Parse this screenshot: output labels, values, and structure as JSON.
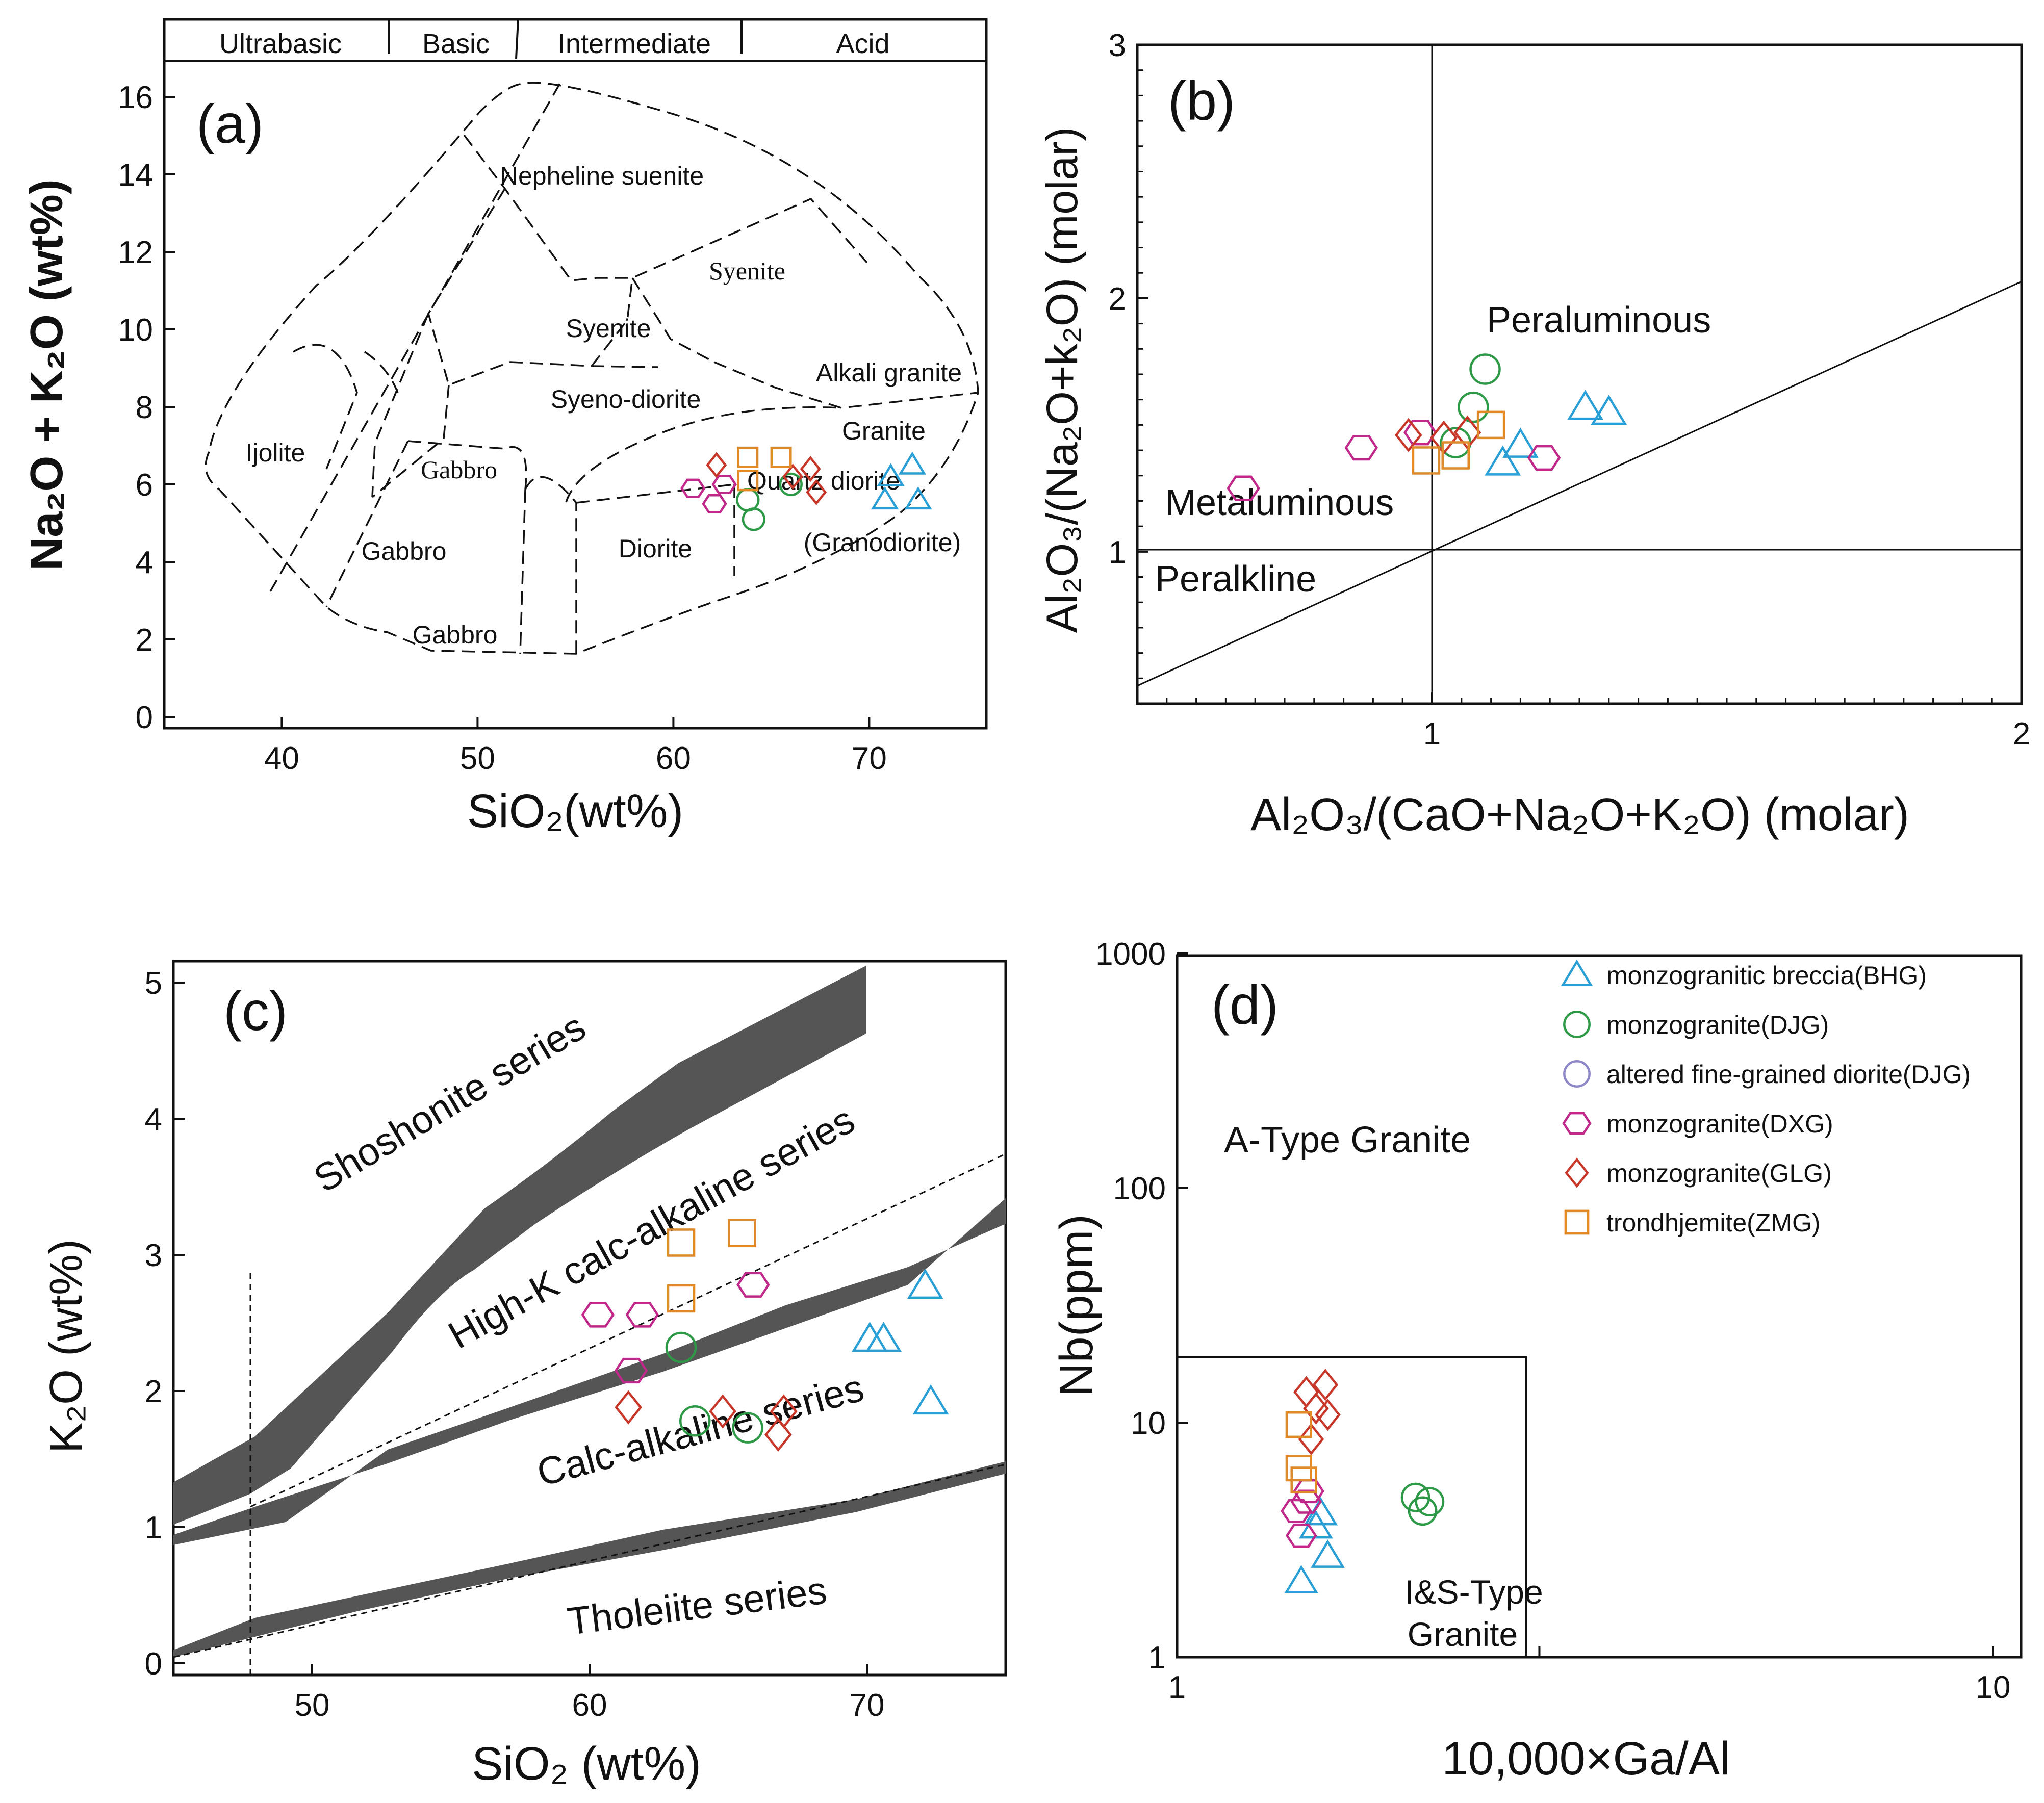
{
  "colors": {
    "BHG": "#2a9fd6",
    "DJG": "#2e9a48",
    "DJG_altered": "#8e88c8",
    "DXG": "#c0288a",
    "GLG": "#c8382a",
    "ZMG": "#e08a2a",
    "band": "#555555",
    "line": "#111111"
  },
  "legend": [
    {
      "label": "monzogranitic breccia(BHG)",
      "marker": "triangle",
      "key": "BHG"
    },
    {
      "label": "monzogranite(DJG)",
      "marker": "circle",
      "key": "DJG"
    },
    {
      "label": "altered fine-grained diorite(DJG)",
      "marker": "circle",
      "key": "DJG_altered"
    },
    {
      "label": "monzogranite(DXG)",
      "marker": "hexagon",
      "key": "DXG"
    },
    {
      "label": "monzogranite(GLG)",
      "marker": "diamond",
      "key": "GLG"
    },
    {
      "label": "trondhjemite(ZMG)",
      "marker": "square",
      "key": "ZMG"
    }
  ],
  "chart_data": [
    {
      "panel": "(a)",
      "type": "scatter",
      "xlabel": "SiO₂(wt%)",
      "ylabel": "Na₂O + K₂O (wt%)",
      "xlim": [
        34,
        76
      ],
      "ylim": [
        0,
        17.7
      ],
      "xticks": [
        40,
        50,
        60,
        70
      ],
      "yticks": [
        0,
        2,
        4,
        6,
        8,
        10,
        12,
        14,
        16
      ],
      "top_bands": [
        "Ultrabasic",
        "Basic",
        "Intermediate",
        "Acid"
      ],
      "fields": [
        "Nepheline suenite",
        "Syenite",
        "Syenite",
        "Alkali granite",
        "Syeno-diorite",
        "Granite",
        "Ijolite",
        "Gabbro",
        "Quartz diorite",
        "(Granodiorite)",
        "Gabbro",
        "Diorite",
        "Gabbro"
      ],
      "series": [
        {
          "key": "BHG",
          "marker": "triangle",
          "x": [
            70.8,
            71.1,
            72.2,
            72.5
          ],
          "y": [
            5.6,
            6.2,
            6.5,
            5.6
          ]
        },
        {
          "key": "DJG",
          "marker": "circle",
          "x": [
            63.8,
            64.1,
            66.0
          ],
          "y": [
            5.6,
            5.1,
            6.0
          ]
        },
        {
          "key": "DXG",
          "marker": "hexagon",
          "x": [
            61.0,
            62.1,
            62.6
          ],
          "y": [
            5.9,
            5.5,
            6.0
          ]
        },
        {
          "key": "GLG",
          "marker": "diamond",
          "x": [
            62.2,
            66.1,
            67.0,
            67.3
          ],
          "y": [
            6.5,
            6.2,
            6.4,
            5.8
          ]
        },
        {
          "key": "ZMG",
          "marker": "square",
          "x": [
            63.8,
            63.8,
            65.5
          ],
          "y": [
            6.1,
            6.7,
            6.7
          ]
        }
      ]
    },
    {
      "panel": "(b)",
      "type": "scatter",
      "xlabel": "Al₂O₃/(CaO+Na₂O+K₂O) (molar)",
      "ylabel": "Al₂O₃/(Na₂O+k₂O) (molar)",
      "xlim": [
        0.5,
        2.0
      ],
      "ylim": [
        0.4,
        3.0
      ],
      "xticks": [
        1,
        2
      ],
      "yticks": [
        1,
        2,
        3
      ],
      "fields": [
        "Peraluminous",
        "Metaluminous",
        "Peralkline"
      ],
      "series": [
        {
          "key": "BHG",
          "marker": "triangle",
          "x": [
            1.12,
            1.15,
            1.26,
            1.3
          ],
          "y": [
            1.35,
            1.42,
            1.57,
            1.55
          ]
        },
        {
          "key": "DJG",
          "marker": "circle",
          "x": [
            1.04,
            1.07,
            1.09
          ],
          "y": [
            1.43,
            1.57,
            1.72
          ]
        },
        {
          "key": "DXG",
          "marker": "hexagon",
          "x": [
            0.68,
            0.88,
            0.98,
            1.19
          ],
          "y": [
            1.25,
            1.41,
            1.47,
            1.37
          ]
        },
        {
          "key": "GLG",
          "marker": "diamond",
          "x": [
            0.96,
            1.02,
            1.06
          ],
          "y": [
            1.46,
            1.45,
            1.47
          ]
        },
        {
          "key": "ZMG",
          "marker": "square",
          "x": [
            0.99,
            1.04,
            1.1
          ],
          "y": [
            1.36,
            1.38,
            1.5
          ]
        }
      ]
    },
    {
      "panel": "(c)",
      "type": "scatter",
      "xlabel": "SiO₂ (wt%)",
      "ylabel": "K₂O (wt%)",
      "xlim": [
        45,
        75
      ],
      "ylim": [
        0,
        5.2
      ],
      "xticks": [
        50,
        60,
        70
      ],
      "yticks": [
        0,
        1,
        2,
        3,
        4,
        5
      ],
      "fields": [
        "Shoshonite series",
        "High-K calc-alkaline series",
        "Calc-alkaline series",
        "Tholeiite series"
      ],
      "series": [
        {
          "key": "BHG",
          "marker": "triangle",
          "x": [
            70.1,
            70.6,
            72.1,
            72.3
          ],
          "y": [
            2.38,
            2.38,
            2.77,
            1.92
          ]
        },
        {
          "key": "DJG",
          "marker": "circle",
          "x": [
            63.3,
            63.8,
            65.7
          ],
          "y": [
            2.32,
            1.78,
            1.73
          ]
        },
        {
          "key": "DXG",
          "marker": "hexagon",
          "x": [
            60.3,
            61.5,
            61.9,
            65.9
          ],
          "y": [
            2.56,
            2.15,
            2.56,
            2.78
          ]
        },
        {
          "key": "GLG",
          "marker": "diamond",
          "x": [
            61.4,
            64.8,
            66.8,
            67.0
          ],
          "y": [
            1.88,
            1.85,
            1.68,
            1.85
          ]
        },
        {
          "key": "ZMG",
          "marker": "square",
          "x": [
            63.3,
            63.3,
            65.5
          ],
          "y": [
            3.09,
            2.68,
            3.16
          ]
        }
      ]
    },
    {
      "panel": "(d)",
      "type": "scatter",
      "xlabel": "10,000×Ga/Al",
      "ylabel": "Nb(ppm)",
      "xscale": "log",
      "yscale": "log",
      "xlim": [
        1,
        10
      ],
      "ylim": [
        1,
        1000
      ],
      "xticks": [
        1,
        10
      ],
      "yticks": [
        1,
        10,
        100,
        1000
      ],
      "fields": [
        "A-Type Granite",
        "I&S-Type",
        "Granite"
      ],
      "series": [
        {
          "key": "BHG",
          "marker": "triangle",
          "x": [
            1.42,
            1.48,
            1.5,
            1.53
          ],
          "y": [
            2.1,
            3.6,
            4.1,
            2.7
          ]
        },
        {
          "key": "DJG",
          "marker": "circle",
          "x": [
            1.96,
            2.0,
            2.04
          ],
          "y": [
            4.8,
            4.2,
            4.6
          ]
        },
        {
          "key": "DXG",
          "marker": "hexagon",
          "x": [
            1.4,
            1.42,
            1.44,
            1.45
          ],
          "y": [
            4.2,
            3.3,
            4.6,
            5.1
          ]
        },
        {
          "key": "GLG",
          "marker": "diamond",
          "x": [
            1.44,
            1.46,
            1.48,
            1.52,
            1.53
          ],
          "y": [
            13.5,
            8.5,
            11.5,
            14.5,
            10.8
          ]
        },
        {
          "key": "ZMG",
          "marker": "square",
          "x": [
            1.41,
            1.41,
            1.43
          ],
          "y": [
            9.8,
            6.4,
            5.7
          ]
        }
      ]
    }
  ]
}
